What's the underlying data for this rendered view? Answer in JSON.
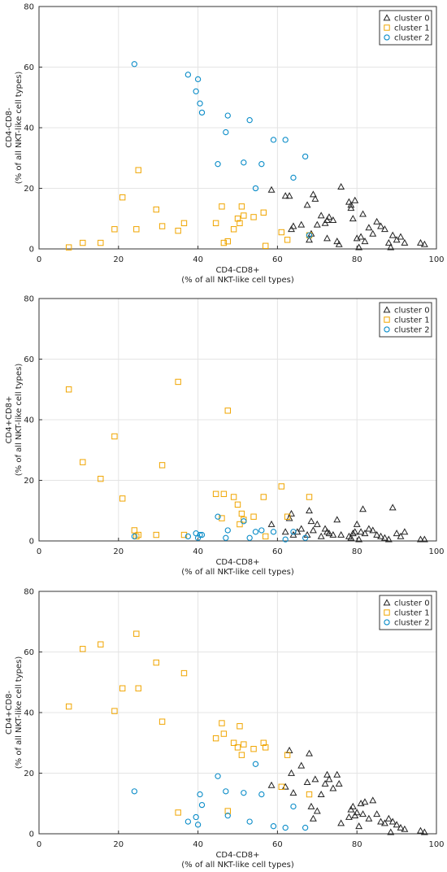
{
  "colors": {
    "cluster0": "#222222",
    "cluster1": "#f0a500",
    "cluster2": "#0a8cc8",
    "grid": "#e4e4e4",
    "axis": "#333333"
  },
  "chart_data": [
    {
      "type": "scatter",
      "title": "",
      "xlabel": [
        "CD4-CD8+",
        "(% of all NKT-like cell types)"
      ],
      "ylabel": [
        "CD4-CD8-",
        "(% of all NKT-like cell types)"
      ],
      "xlim": [
        0,
        100
      ],
      "ylim": [
        0,
        80
      ],
      "xticks": [
        0,
        20,
        40,
        60,
        80,
        100
      ],
      "yticks": [
        0,
        20,
        40,
        60,
        80
      ],
      "grid": true,
      "legend_position": "top-right",
      "series": [
        {
          "name": "cluster 0",
          "marker": "triangle",
          "points": [
            [
              58.5,
              19.5
            ],
            [
              62,
              17.5
            ],
            [
              63,
              17.5
            ],
            [
              63.5,
              6.5
            ],
            [
              64,
              7.5
            ],
            [
              66,
              8
            ],
            [
              67.5,
              14.5
            ],
            [
              68,
              3
            ],
            [
              68.5,
              5
            ],
            [
              69,
              18
            ],
            [
              69.5,
              16.5
            ],
            [
              70,
              8
            ],
            [
              71,
              11
            ],
            [
              72,
              8.5
            ],
            [
              72.5,
              3.5
            ],
            [
              72.5,
              9.5
            ],
            [
              73,
              10.5
            ],
            [
              74,
              9.5
            ],
            [
              75,
              2.5
            ],
            [
              75.5,
              1.5
            ],
            [
              76,
              20.5
            ],
            [
              78,
              15.5
            ],
            [
              78.5,
              14.5
            ],
            [
              78.5,
              13.5
            ],
            [
              79,
              10
            ],
            [
              79.5,
              16
            ],
            [
              80,
              3.5
            ],
            [
              80.5,
              0.5
            ],
            [
              81,
              4
            ],
            [
              81.5,
              11.5
            ],
            [
              82,
              2.5
            ],
            [
              83,
              7
            ],
            [
              84,
              5
            ],
            [
              85,
              9
            ],
            [
              86,
              7.5
            ],
            [
              87,
              6.5
            ],
            [
              88,
              2
            ],
            [
              88.5,
              0.5
            ],
            [
              89,
              4.5
            ],
            [
              90,
              3
            ],
            [
              91,
              4
            ],
            [
              92,
              2
            ],
            [
              96,
              2
            ],
            [
              97,
              1.5
            ]
          ]
        },
        {
          "name": "cluster 1",
          "marker": "square",
          "points": [
            [
              7.5,
              0.5
            ],
            [
              11,
              2
            ],
            [
              15.5,
              2
            ],
            [
              19,
              6.5
            ],
            [
              21,
              17
            ],
            [
              24.5,
              6.5
            ],
            [
              25,
              26
            ],
            [
              29.5,
              13
            ],
            [
              31,
              7.5
            ],
            [
              35,
              6
            ],
            [
              36.5,
              8.5
            ],
            [
              44.5,
              8.5
            ],
            [
              46,
              14
            ],
            [
              46.5,
              2
            ],
            [
              47.5,
              2.5
            ],
            [
              49,
              6.5
            ],
            [
              50,
              10
            ],
            [
              50.5,
              8.5
            ],
            [
              51,
              14
            ],
            [
              51.5,
              11
            ],
            [
              54,
              10.5
            ],
            [
              56.5,
              12
            ],
            [
              57,
              1
            ],
            [
              61,
              5.5
            ],
            [
              62.5,
              3
            ],
            [
              68,
              4.5
            ]
          ]
        },
        {
          "name": "cluster 2",
          "marker": "circle",
          "points": [
            [
              24,
              61
            ],
            [
              37.5,
              57.5
            ],
            [
              39.5,
              52
            ],
            [
              40,
              56
            ],
            [
              40.5,
              48
            ],
            [
              41,
              45
            ],
            [
              45,
              28
            ],
            [
              47,
              38.5
            ],
            [
              47.5,
              44
            ],
            [
              51.5,
              28.5
            ],
            [
              53,
              42.5
            ],
            [
              54.5,
              20
            ],
            [
              56,
              28
            ],
            [
              59,
              36
            ],
            [
              62,
              36
            ],
            [
              64,
              23.5
            ],
            [
              67,
              30.5
            ],
            [
              68,
              4.5
            ]
          ]
        }
      ]
    },
    {
      "type": "scatter",
      "title": "",
      "xlabel": [
        "CD4-CD8+",
        "(% of all NKT-like cell types)"
      ],
      "ylabel": [
        "CD4+CD8+",
        "(% of all NKT-like cell types)"
      ],
      "xlim": [
        0,
        100
      ],
      "ylim": [
        0,
        80
      ],
      "xticks": [
        0,
        20,
        40,
        60,
        80,
        100
      ],
      "yticks": [
        0,
        20,
        40,
        60,
        80
      ],
      "grid": true,
      "legend_position": "top-right",
      "series": [
        {
          "name": "cluster 0",
          "marker": "triangle",
          "points": [
            [
              58.5,
              5.5
            ],
            [
              62,
              3
            ],
            [
              63,
              7.5
            ],
            [
              63.5,
              9
            ],
            [
              64,
              2
            ],
            [
              65,
              3
            ],
            [
              66,
              4
            ],
            [
              67.5,
              2
            ],
            [
              68,
              10
            ],
            [
              68.5,
              6.5
            ],
            [
              69,
              3.5
            ],
            [
              70,
              5.5
            ],
            [
              71,
              1.5
            ],
            [
              72,
              4
            ],
            [
              72.5,
              3
            ],
            [
              73,
              2.5
            ],
            [
              74,
              2
            ],
            [
              75,
              7
            ],
            [
              76,
              2
            ],
            [
              78,
              1.5
            ],
            [
              78.5,
              1
            ],
            [
              79,
              2.5
            ],
            [
              79.5,
              3
            ],
            [
              80,
              5.5
            ],
            [
              80.5,
              0.5
            ],
            [
              81,
              3
            ],
            [
              81.5,
              10.5
            ],
            [
              82,
              2.5
            ],
            [
              83,
              4
            ],
            [
              84,
              3.5
            ],
            [
              85,
              2
            ],
            [
              86,
              1.5
            ],
            [
              87,
              1
            ],
            [
              88,
              0.5
            ],
            [
              89,
              11
            ],
            [
              90,
              2.5
            ],
            [
              91,
              1.5
            ],
            [
              92,
              3
            ],
            [
              96,
              0.5
            ],
            [
              97,
              0.5
            ]
          ]
        },
        {
          "name": "cluster 1",
          "marker": "square",
          "points": [
            [
              7.5,
              50
            ],
            [
              11,
              26
            ],
            [
              15.5,
              20.5
            ],
            [
              19,
              34.5
            ],
            [
              21,
              14
            ],
            [
              24,
              3.5
            ],
            [
              24.5,
              1.5
            ],
            [
              25,
              2
            ],
            [
              29.5,
              2
            ],
            [
              31,
              25
            ],
            [
              35,
              52.5
            ],
            [
              36.5,
              2
            ],
            [
              44.5,
              15.5
            ],
            [
              46,
              7.5
            ],
            [
              46.5,
              15.5
            ],
            [
              47.5,
              43
            ],
            [
              49,
              14.5
            ],
            [
              50,
              12
            ],
            [
              50.5,
              5.5
            ],
            [
              51,
              9
            ],
            [
              51.5,
              7
            ],
            [
              54,
              8
            ],
            [
              56.5,
              14.5
            ],
            [
              57,
              1.5
            ],
            [
              61,
              18
            ],
            [
              62.5,
              8
            ],
            [
              68,
              14.5
            ]
          ]
        },
        {
          "name": "cluster 2",
          "marker": "circle",
          "points": [
            [
              24,
              1.5
            ],
            [
              37.5,
              1.5
            ],
            [
              39.5,
              2.5
            ],
            [
              40,
              1
            ],
            [
              40.5,
              2
            ],
            [
              41,
              2
            ],
            [
              45,
              8
            ],
            [
              47,
              1
            ],
            [
              47.5,
              3.5
            ],
            [
              51.5,
              6.5
            ],
            [
              53,
              1
            ],
            [
              54.5,
              3
            ],
            [
              56,
              3.5
            ],
            [
              59,
              3
            ],
            [
              62,
              0.5
            ],
            [
              64,
              3
            ],
            [
              67,
              1
            ]
          ]
        }
      ]
    },
    {
      "type": "scatter",
      "title": "",
      "xlabel": [
        "CD4-CD8+",
        "(% of all NKT-like cell types)"
      ],
      "ylabel": [
        "CD4+CD8-",
        "(% of all NKT-like cell types)"
      ],
      "xlim": [
        0,
        100
      ],
      "ylim": [
        0,
        80
      ],
      "xticks": [
        0,
        20,
        40,
        60,
        80,
        100
      ],
      "yticks": [
        0,
        20,
        40,
        60,
        80
      ],
      "grid": true,
      "legend_position": "top-right",
      "series": [
        {
          "name": "cluster 0",
          "marker": "triangle",
          "points": [
            [
              58.5,
              16
            ],
            [
              62,
              15.5
            ],
            [
              63,
              27.5
            ],
            [
              63.5,
              20
            ],
            [
              64,
              13.5
            ],
            [
              66,
              22.5
            ],
            [
              67.5,
              17
            ],
            [
              68,
              26.5
            ],
            [
              68.5,
              9
            ],
            [
              69,
              5
            ],
            [
              69.5,
              18
            ],
            [
              70,
              7.5
            ],
            [
              71,
              13
            ],
            [
              72,
              16.5
            ],
            [
              72.5,
              19.5
            ],
            [
              73,
              18
            ],
            [
              74,
              15
            ],
            [
              75,
              19.5
            ],
            [
              75.5,
              16.5
            ],
            [
              76,
              3.5
            ],
            [
              78,
              5.5
            ],
            [
              78.5,
              8
            ],
            [
              79,
              9
            ],
            [
              79.5,
              6
            ],
            [
              80,
              7
            ],
            [
              80.5,
              2.5
            ],
            [
              81,
              10
            ],
            [
              81.5,
              6.5
            ],
            [
              82,
              10.5
            ],
            [
              83,
              5
            ],
            [
              84,
              11
            ],
            [
              85,
              6.5
            ],
            [
              86,
              4
            ],
            [
              87,
              3.5
            ],
            [
              88,
              5
            ],
            [
              88.5,
              0.5
            ],
            [
              89,
              4
            ],
            [
              90,
              3
            ],
            [
              91,
              2
            ],
            [
              92,
              1.5
            ],
            [
              96,
              1
            ],
            [
              97,
              0.5
            ]
          ]
        },
        {
          "name": "cluster 1",
          "marker": "square",
          "points": [
            [
              7.5,
              42
            ],
            [
              11,
              61
            ],
            [
              15.5,
              62.5
            ],
            [
              19,
              40.5
            ],
            [
              21,
              48
            ],
            [
              24.5,
              66
            ],
            [
              25,
              48
            ],
            [
              29.5,
              56.5
            ],
            [
              31,
              37
            ],
            [
              35,
              7
            ],
            [
              36.5,
              53
            ],
            [
              44.5,
              31.5
            ],
            [
              46,
              36.5
            ],
            [
              46.5,
              33
            ],
            [
              47.5,
              7.5
            ],
            [
              49,
              30
            ],
            [
              50,
              28.5
            ],
            [
              50.5,
              35.5
            ],
            [
              51,
              26
            ],
            [
              51.5,
              29.5
            ],
            [
              54,
              28
            ],
            [
              56.5,
              30
            ],
            [
              57,
              28.5
            ],
            [
              61,
              15.5
            ],
            [
              62.5,
              26
            ],
            [
              68,
              13
            ]
          ]
        },
        {
          "name": "cluster 2",
          "marker": "circle",
          "points": [
            [
              24,
              14
            ],
            [
              37.5,
              4
            ],
            [
              39.5,
              5.5
            ],
            [
              40,
              3
            ],
            [
              40.5,
              13
            ],
            [
              41,
              9.5
            ],
            [
              45,
              19
            ],
            [
              47,
              14
            ],
            [
              47.5,
              6
            ],
            [
              51.5,
              13.5
            ],
            [
              53,
              4
            ],
            [
              54.5,
              23
            ],
            [
              56,
              13
            ],
            [
              59,
              2.5
            ],
            [
              62,
              2
            ],
            [
              64,
              9
            ],
            [
              67,
              2
            ]
          ]
        }
      ]
    }
  ]
}
